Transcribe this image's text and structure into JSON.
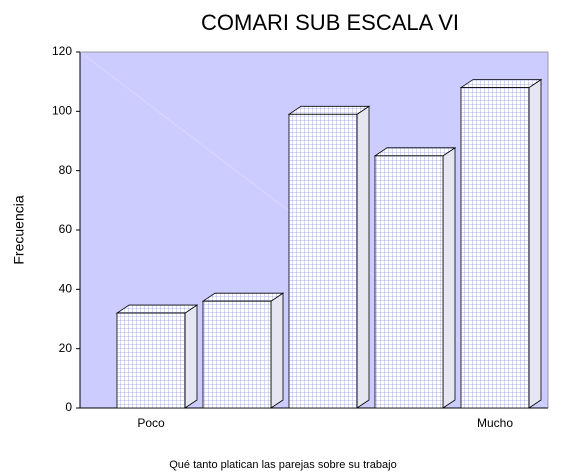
{
  "chart_data": {
    "type": "bar3d",
    "title": "COMARI SUB ESCALA VI",
    "y_label": "Frecuencia",
    "x_label": "Qué tanto platican las parejas sobre su trabajo",
    "categories": [
      "Poco",
      null,
      null,
      null,
      "Mucho"
    ],
    "values": [
      32,
      36,
      99,
      85,
      108
    ],
    "color": "#ffffff",
    "background": "#ccccff",
    "ylim": [
      0,
      120
    ],
    "yticks": [
      0,
      20,
      40,
      60,
      80,
      100,
      120
    ]
  }
}
